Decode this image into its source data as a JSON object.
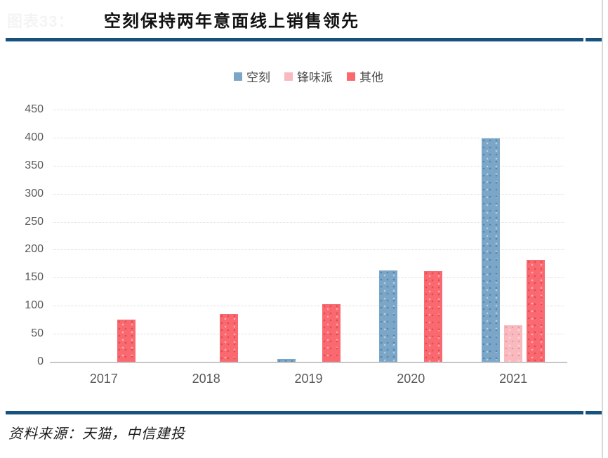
{
  "figure": {
    "ghost_label": "图表33：",
    "title": "空刻保持两年意面线上销售领先",
    "source": "资料来源：天猫，中信建投"
  },
  "colors": {
    "rule_blue": "#17527E",
    "axis_text": "#595959",
    "gridline": "#D9D9D9",
    "baseline": "#C6C6C6",
    "right_border": "#D9D9D9"
  },
  "chart_data": {
    "type": "bar",
    "title": "空刻保持两年意面线上销售领先",
    "categories": [
      "2017",
      "2018",
      "2019",
      "2020",
      "2021"
    ],
    "series": [
      {
        "name": "空刻",
        "color": "#7BA6C7",
        "speckle": "#4F86B4",
        "values": [
          0,
          0,
          5,
          163,
          399
        ]
      },
      {
        "name": "锋味派",
        "color": "#F9BABF",
        "speckle": "#F095A0",
        "values": [
          0,
          0,
          0,
          0,
          65
        ]
      },
      {
        "name": "其他",
        "color": "#F9696F",
        "speckle": "#E04B55",
        "values": [
          75,
          85,
          103,
          162,
          182
        ]
      }
    ],
    "ylim": [
      0,
      450
    ],
    "ytick_step": 50,
    "grid": true,
    "legend_position": "top-center",
    "xlabel": "",
    "ylabel": ""
  }
}
